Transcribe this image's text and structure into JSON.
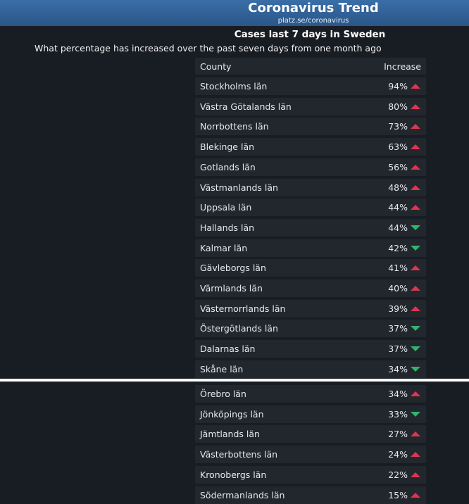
{
  "header": {
    "title": "Coronavirus Trend",
    "subtitle": "platz.se/coronavirus"
  },
  "heading": "Cases last 7 days in Sweden",
  "description": "What percentage has increased over the past seven days from one month ago",
  "table": {
    "columns": [
      "County",
      "Increase"
    ],
    "rows": [
      {
        "county": "Stockholms län",
        "increase": "94%",
        "trend": "up"
      },
      {
        "county": "Västra Götalands län",
        "increase": "80%",
        "trend": "up"
      },
      {
        "county": "Norrbottens län",
        "increase": "73%",
        "trend": "up"
      },
      {
        "county": "Blekinge län",
        "increase": "63%",
        "trend": "up"
      },
      {
        "county": "Gotlands län",
        "increase": "56%",
        "trend": "up"
      },
      {
        "county": "Västmanlands län",
        "increase": "48%",
        "trend": "up"
      },
      {
        "county": "Uppsala län",
        "increase": "44%",
        "trend": "up"
      },
      {
        "county": "Hallands län",
        "increase": "44%",
        "trend": "down"
      },
      {
        "county": "Kalmar län",
        "increase": "42%",
        "trend": "down"
      },
      {
        "county": "Gävleborgs län",
        "increase": "41%",
        "trend": "up"
      },
      {
        "county": "Värmlands län",
        "increase": "40%",
        "trend": "up"
      },
      {
        "county": "Västernorrlands län",
        "increase": "39%",
        "trend": "up"
      },
      {
        "county": "Östergötlands län",
        "increase": "37%",
        "trend": "down"
      },
      {
        "county": "Dalarnas län",
        "increase": "37%",
        "trend": "down"
      },
      {
        "county": "Skåne län",
        "increase": "34%",
        "trend": "down"
      },
      {
        "county": "Örebro län",
        "increase": "34%",
        "trend": "up"
      },
      {
        "county": "Jönköpings län",
        "increase": "33%",
        "trend": "down"
      },
      {
        "county": "Jämtlands län",
        "increase": "27%",
        "trend": "up"
      },
      {
        "county": "Västerbottens län",
        "increase": "24%",
        "trend": "up"
      },
      {
        "county": "Kronobergs län",
        "increase": "22%",
        "trend": "up"
      },
      {
        "county": "Södermanlands län",
        "increase": "15%",
        "trend": "up"
      }
    ]
  }
}
